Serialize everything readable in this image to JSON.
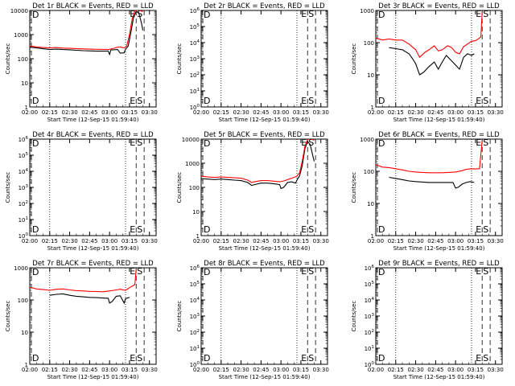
{
  "colors": {
    "background": "#ffffff",
    "events": "#000000",
    "lld": "#ff0000",
    "axes": "#000000"
  },
  "common": {
    "ylabel": "Counts/sec",
    "xlabel": "Start Time (12-Sep-15 01:59:40)",
    "xticks": [
      "02:00",
      "02:15",
      "02:30",
      "02:45",
      "03:00",
      "03:15",
      "03:30"
    ],
    "dotted_times": [
      "02:00",
      "02:15",
      "03:12"
    ],
    "dashed_times": [
      "03:20",
      "03:26"
    ],
    "markers": [
      "E",
      "S"
    ]
  },
  "chart_data": [
    {
      "type": "line",
      "title": "Det 1r BLACK = Events, RED = LLD",
      "xlim": [
        "02:00",
        "03:35"
      ],
      "ylim": [
        1,
        10000
      ],
      "yscale": "log",
      "ytick_labels": [
        "1",
        "10",
        "100",
        "1000",
        "10000"
      ],
      "series": [
        {
          "name": "Events",
          "color": "#000000",
          "points": [
            [
              "02:00",
              300
            ],
            [
              "02:05",
              280
            ],
            [
              "02:10",
              260
            ],
            [
              "02:15",
              240
            ],
            [
              "02:20",
              250
            ],
            [
              "02:25",
              240
            ],
            [
              "02:30",
              235
            ],
            [
              "02:40",
              215
            ],
            [
              "02:50",
              205
            ],
            [
              "02:59",
              205
            ],
            [
              "03:00",
              150
            ],
            [
              "03:01",
              230
            ],
            [
              "03:06",
              240
            ],
            [
              "03:08",
              170
            ],
            [
              "03:11",
              175
            ],
            [
              "03:12",
              250
            ],
            [
              "03:14",
              330
            ],
            [
              "03:16",
              1200
            ],
            [
              "03:18",
              5000
            ],
            [
              "03:20",
              9000
            ],
            [
              "03:22",
              8000
            ],
            [
              "03:24",
              3000
            ],
            [
              "03:25",
              1500
            ]
          ]
        },
        {
          "name": "LLD",
          "color": "#ff0000",
          "points": [
            [
              "02:00",
              340
            ],
            [
              "02:05",
              310
            ],
            [
              "02:10",
              290
            ],
            [
              "02:15",
              280
            ],
            [
              "02:20",
              290
            ],
            [
              "02:25",
              275
            ],
            [
              "02:30",
              270
            ],
            [
              "02:40",
              255
            ],
            [
              "02:50",
              245
            ],
            [
              "02:59",
              240
            ],
            [
              "03:03",
              270
            ],
            [
              "03:06",
              300
            ],
            [
              "03:08",
              310
            ],
            [
              "03:11",
              280
            ],
            [
              "03:13",
              340
            ],
            [
              "03:15",
              1000
            ],
            [
              "03:17",
              4500
            ],
            [
              "03:19",
              9500
            ],
            [
              "03:21",
              10500
            ],
            [
              "03:23",
              9800
            ],
            [
              "03:25",
              9000
            ]
          ]
        }
      ]
    },
    {
      "type": "line",
      "title": "Det 2r BLACK = Events, RED = LLD",
      "xlim": [
        "02:00",
        "03:35"
      ],
      "ylim": [
        1,
        1000000
      ],
      "yscale": "log",
      "ytick_labels": [
        "10^0",
        "10^1",
        "10^2",
        "10^3",
        "10^4",
        "10^5",
        "10^6"
      ],
      "series": []
    },
    {
      "type": "line",
      "title": "Det 3r BLACK = Events, RED = LLD",
      "xlim": [
        "02:00",
        "03:35"
      ],
      "ylim": [
        1,
        1000
      ],
      "yscale": "log",
      "ytick_labels": [
        "1",
        "10",
        "100",
        "1000"
      ],
      "series": [
        {
          "name": "Events",
          "color": "#000000",
          "points": [
            [
              "02:10",
              70
            ],
            [
              "02:15",
              65
            ],
            [
              "02:20",
              60
            ],
            [
              "02:25",
              45
            ],
            [
              "02:28",
              30
            ],
            [
              "02:30",
              22
            ],
            [
              "02:33",
              10
            ],
            [
              "02:36",
              12
            ],
            [
              "02:40",
              18
            ],
            [
              "02:44",
              25
            ],
            [
              "02:47",
              15
            ],
            [
              "02:50",
              25
            ],
            [
              "02:53",
              40
            ],
            [
              "02:56",
              30
            ],
            [
              "03:00",
              20
            ],
            [
              "03:03",
              15
            ],
            [
              "03:06",
              35
            ],
            [
              "03:09",
              45
            ],
            [
              "03:12",
              40
            ],
            [
              "03:14",
              45
            ]
          ]
        },
        {
          "name": "LLD",
          "color": "#ff0000",
          "points": [
            [
              "02:00",
              140
            ],
            [
              "02:05",
              120
            ],
            [
              "02:10",
              130
            ],
            [
              "02:15",
              120
            ],
            [
              "02:20",
              120
            ],
            [
              "02:25",
              90
            ],
            [
              "02:30",
              60
            ],
            [
              "02:33",
              35
            ],
            [
              "02:37",
              50
            ],
            [
              "02:40",
              60
            ],
            [
              "02:44",
              80
            ],
            [
              "02:47",
              55
            ],
            [
              "02:50",
              60
            ],
            [
              "02:54",
              80
            ],
            [
              "02:57",
              70
            ],
            [
              "03:00",
              50
            ],
            [
              "03:03",
              45
            ],
            [
              "03:06",
              75
            ],
            [
              "03:09",
              90
            ],
            [
              "03:12",
              110
            ],
            [
              "03:15",
              115
            ],
            [
              "03:17",
              130
            ],
            [
              "03:19",
              150
            ],
            [
              "03:20",
              900
            ]
          ]
        }
      ]
    },
    {
      "type": "line",
      "title": "Det 4r BLACK = Events, RED = LLD",
      "xlim": [
        "02:00",
        "03:35"
      ],
      "ylim": [
        1,
        1000000
      ],
      "yscale": "log",
      "ytick_labels": [
        "10^0",
        "10^1",
        "10^2",
        "10^3",
        "10^4",
        "10^5",
        "10^6"
      ],
      "series": []
    },
    {
      "type": "line",
      "title": "Det 5r BLACK = Events, RED = LLD",
      "xlim": [
        "02:00",
        "03:35"
      ],
      "ylim": [
        1,
        10000
      ],
      "yscale": "log",
      "ytick_labels": [
        "1",
        "10",
        "100",
        "1000",
        "10000"
      ],
      "series": [
        {
          "name": "Events",
          "color": "#000000",
          "points": [
            [
              "02:00",
              230
            ],
            [
              "02:05",
              220
            ],
            [
              "02:10",
              210
            ],
            [
              "02:15",
              220
            ],
            [
              "02:20",
              210
            ],
            [
              "02:25",
              200
            ],
            [
              "02:30",
              190
            ],
            [
              "02:35",
              160
            ],
            [
              "02:38",
              120
            ],
            [
              "02:40",
              130
            ],
            [
              "02:45",
              150
            ],
            [
              "02:50",
              150
            ],
            [
              "02:55",
              140
            ],
            [
              "02:59",
              130
            ],
            [
              "03:00",
              90
            ],
            [
              "03:02",
              100
            ],
            [
              "03:05",
              160
            ],
            [
              "03:08",
              170
            ],
            [
              "03:11",
              150
            ],
            [
              "03:12",
              200
            ],
            [
              "03:14",
              300
            ],
            [
              "03:16",
              800
            ],
            [
              "03:18",
              4000
            ],
            [
              "03:20",
              8000
            ],
            [
              "03:22",
              6000
            ],
            [
              "03:24",
              2000
            ],
            [
              "03:25",
              1200
            ]
          ]
        },
        {
          "name": "LLD",
          "color": "#ff0000",
          "points": [
            [
              "02:00",
              290
            ],
            [
              "02:05",
              270
            ],
            [
              "02:10",
              260
            ],
            [
              "02:15",
              270
            ],
            [
              "02:20",
              260
            ],
            [
              "02:25",
              250
            ],
            [
              "02:30",
              240
            ],
            [
              "02:35",
              200
            ],
            [
              "02:38",
              160
            ],
            [
              "02:40",
              170
            ],
            [
              "02:45",
              190
            ],
            [
              "02:50",
              190
            ],
            [
              "02:55",
              180
            ],
            [
              "02:59",
              170
            ],
            [
              "03:03",
              190
            ],
            [
              "03:06",
              220
            ],
            [
              "03:09",
              250
            ],
            [
              "03:12",
              290
            ],
            [
              "03:14",
              400
            ],
            [
              "03:16",
              1200
            ],
            [
              "03:18",
              5000
            ],
            [
              "03:20",
              9500
            ],
            [
              "03:22",
              10500
            ],
            [
              "03:24",
              9500
            ],
            [
              "03:25",
              9000
            ]
          ]
        }
      ]
    },
    {
      "type": "line",
      "title": "Det 6r BLACK = Events, RED = LLD",
      "xlim": [
        "02:00",
        "03:35"
      ],
      "ylim": [
        1,
        1000
      ],
      "yscale": "log",
      "ytick_labels": [
        "1",
        "10",
        "100",
        "1000"
      ],
      "series": [
        {
          "name": "Events",
          "color": "#000000",
          "points": [
            [
              "02:10",
              65
            ],
            [
              "02:15",
              60
            ],
            [
              "02:20",
              55
            ],
            [
              "02:25",
              50
            ],
            [
              "02:30",
              48
            ],
            [
              "02:40",
              45
            ],
            [
              "02:50",
              45
            ],
            [
              "02:58",
              45
            ],
            [
              "03:00",
              30
            ],
            [
              "03:02",
              32
            ],
            [
              "03:05",
              40
            ],
            [
              "03:08",
              45
            ],
            [
              "03:11",
              48
            ],
            [
              "03:14",
              45
            ]
          ]
        },
        {
          "name": "LLD",
          "color": "#ff0000",
          "points": [
            [
              "02:00",
              160
            ],
            [
              "02:05",
              135
            ],
            [
              "02:10",
              130
            ],
            [
              "02:15",
              120
            ],
            [
              "02:20",
              110
            ],
            [
              "02:25",
              100
            ],
            [
              "02:30",
              95
            ],
            [
              "02:40",
              90
            ],
            [
              "02:50",
              90
            ],
            [
              "03:00",
              95
            ],
            [
              "03:05",
              105
            ],
            [
              "03:08",
              115
            ],
            [
              "03:12",
              120
            ],
            [
              "03:15",
              118
            ],
            [
              "03:18",
              120
            ],
            [
              "03:20",
              900
            ]
          ]
        }
      ]
    },
    {
      "type": "line",
      "title": "Det 7r BLACK = Events, RED = LLD",
      "xlim": [
        "02:00",
        "03:35"
      ],
      "ylim": [
        1,
        1000
      ],
      "yscale": "log",
      "ytick_labels": [
        "1",
        "10",
        "100",
        "1000"
      ],
      "series": [
        {
          "name": "Events",
          "color": "#000000",
          "points": [
            [
              "02:15",
              140
            ],
            [
              "02:20",
              150
            ],
            [
              "02:25",
              155
            ],
            [
              "02:30",
              140
            ],
            [
              "02:35",
              130
            ],
            [
              "02:40",
              125
            ],
            [
              "02:45",
              120
            ],
            [
              "02:50",
              118
            ],
            [
              "02:55",
              115
            ],
            [
              "02:59",
              113
            ],
            [
              "03:00",
              80
            ],
            [
              "03:02",
              90
            ],
            [
              "03:05",
              130
            ],
            [
              "03:08",
              135
            ],
            [
              "03:11",
              80
            ],
            [
              "03:12",
              110
            ],
            [
              "03:15",
              120
            ]
          ]
        },
        {
          "name": "LLD",
          "color": "#ff0000",
          "points": [
            [
              "02:00",
              250
            ],
            [
              "02:05",
              220
            ],
            [
              "02:10",
              210
            ],
            [
              "02:15",
              200
            ],
            [
              "02:20",
              215
            ],
            [
              "02:25",
              220
            ],
            [
              "02:30",
              205
            ],
            [
              "02:35",
              195
            ],
            [
              "02:40",
              190
            ],
            [
              "02:45",
              185
            ],
            [
              "02:50",
              183
            ],
            [
              "02:55",
              180
            ],
            [
              "03:00",
              190
            ],
            [
              "03:05",
              205
            ],
            [
              "03:08",
              215
            ],
            [
              "03:12",
              200
            ],
            [
              "03:15",
              240
            ],
            [
              "03:19",
              300
            ],
            [
              "03:20",
              900
            ]
          ]
        }
      ]
    },
    {
      "type": "line",
      "title": "Det 8r BLACK = Events, RED = LLD",
      "xlim": [
        "02:00",
        "03:35"
      ],
      "ylim": [
        1,
        1000000
      ],
      "yscale": "log",
      "ytick_labels": [
        "10^0",
        "10^1",
        "10^2",
        "10^3",
        "10^4",
        "10^5",
        "10^6"
      ],
      "series": []
    },
    {
      "type": "line",
      "title": "Det 9r BLACK = Events, RED = LLD",
      "xlim": [
        "02:00",
        "03:35"
      ],
      "ylim": [
        1,
        1000000
      ],
      "yscale": "log",
      "ytick_labels": [
        "10^0",
        "10^1",
        "10^2",
        "10^3",
        "10^4",
        "10^5",
        "10^6"
      ],
      "series": []
    }
  ]
}
